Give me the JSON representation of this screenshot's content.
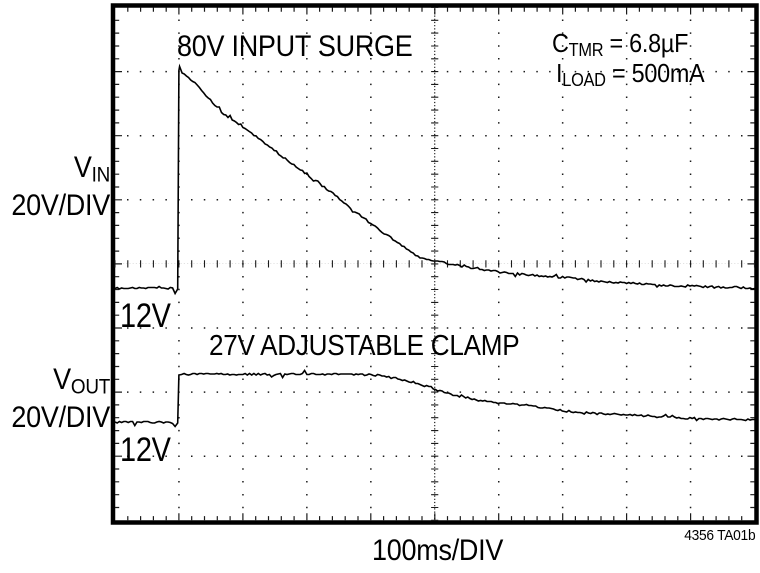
{
  "labels": {
    "vin": {
      "main": "V",
      "sub": "IN",
      "scale": "20V/DIV"
    },
    "vout": {
      "main": "V",
      "sub": "OUT",
      "scale": "20V/DIV"
    },
    "xaxis": "100ms/DIV",
    "caption": "4356 TA01b"
  },
  "annotations": {
    "surge": "80V INPUT SURGE",
    "clamp": "27V ADJUSTABLE CLAMP",
    "ctmr": {
      "main": "C",
      "sub": "TMR",
      "rest": " = 6.8µF"
    },
    "iload": {
      "main": "I",
      "sub": "LOAD",
      "rest": " = 500mA"
    },
    "vin_baseline": "12V",
    "vout_baseline": "12V"
  },
  "chart_data": {
    "type": "line",
    "title": "",
    "xlabel": "100ms/DIV",
    "x_per_div": "100ms",
    "y_per_div": "20V",
    "x_divisions": 10,
    "y_divisions": 8,
    "x_range_ms": [
      0,
      1000
    ],
    "grid": "oscilloscope dotted graticule, minor ticks every 1/5 division, ticked center axes",
    "legend_position": "none",
    "series": [
      {
        "name": "VIN",
        "label": "VIN 20V/DIV",
        "baseline_V": 12,
        "peak_V": 80,
        "baseline_pos_div_from_top": 4.38,
        "points_ms_V": [
          [
            0,
            12
          ],
          [
            55,
            12
          ],
          [
            90,
            11.9
          ],
          [
            94,
            10.4
          ],
          [
            98,
            11.8
          ],
          [
            100,
            80
          ],
          [
            101,
            81.2
          ],
          [
            105,
            79.2
          ],
          [
            125,
            76
          ],
          [
            170,
            66.3
          ],
          [
            210,
            61
          ],
          [
            263,
            52.9
          ],
          [
            300,
            47.5
          ],
          [
            341,
            41.6
          ],
          [
            375,
            36
          ],
          [
            414,
            30.1
          ],
          [
            445,
            25.7
          ],
          [
            477,
            21.4
          ],
          [
            525,
            19.5
          ],
          [
            560,
            18.3
          ],
          [
            602,
            17
          ],
          [
            650,
            16.1
          ],
          [
            700,
            15.4
          ],
          [
            750,
            14.4
          ],
          [
            800,
            13.6
          ],
          [
            868,
            12.9
          ],
          [
            930,
            12.4
          ],
          [
            1000,
            12.1
          ]
        ]
      },
      {
        "name": "VOUT",
        "label": "VOUT 20V/DIV",
        "baseline_V": 12,
        "clamp_V": 27,
        "baseline_pos_div_from_top": 6.47,
        "points_ms_V": [
          [
            0,
            12
          ],
          [
            55,
            12
          ],
          [
            90,
            11.9
          ],
          [
            94,
            10.6
          ],
          [
            98,
            11.8
          ],
          [
            100,
            26.8
          ],
          [
            108,
            27
          ],
          [
            200,
            27
          ],
          [
            300,
            27
          ],
          [
            360,
            27
          ],
          [
            414,
            26.7
          ],
          [
            446,
            25.4
          ],
          [
            477,
            23.9
          ],
          [
            508,
            21.7
          ],
          [
            532,
            20.4
          ],
          [
            555,
            19.5
          ],
          [
            575,
            18.6
          ],
          [
            602,
            17.9
          ],
          [
            629,
            17.6
          ],
          [
            665,
            16.7
          ],
          [
            696,
            15.7
          ],
          [
            727,
            15.1
          ],
          [
            774,
            14.5
          ],
          [
            837,
            13.9
          ],
          [
            899,
            13.2
          ],
          [
            962,
            12.9
          ],
          [
            1000,
            12.6
          ]
        ]
      }
    ]
  }
}
